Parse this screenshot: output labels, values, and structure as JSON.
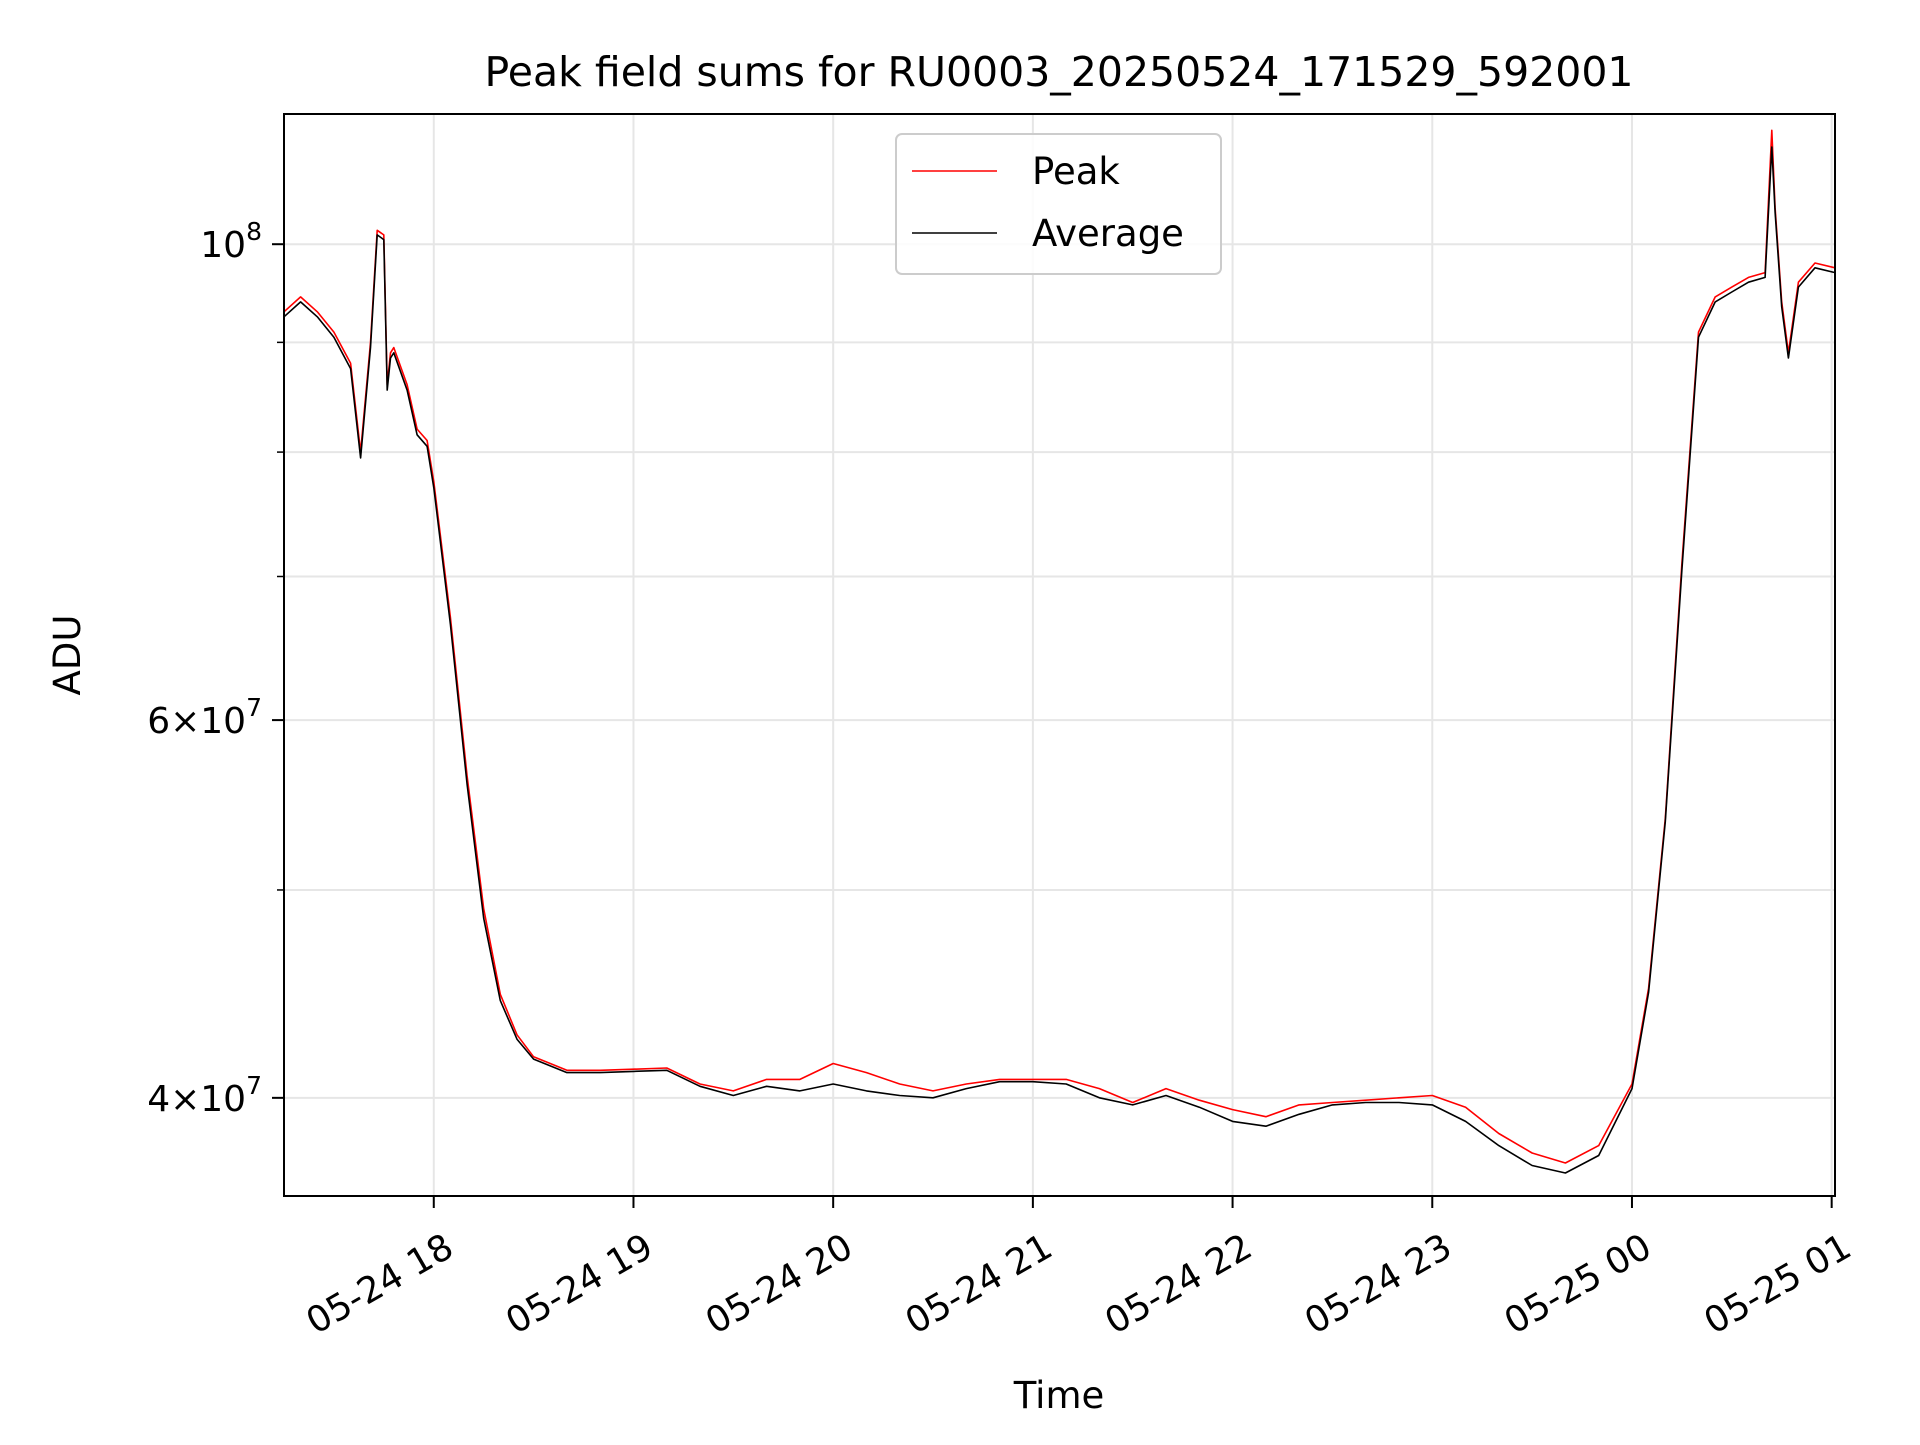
{
  "chart_data": {
    "type": "line",
    "title": "Peak field sums for RU0003_20250524_171529_592001",
    "xlabel": "Time",
    "ylabel": "ADU",
    "y_scale": "log",
    "ylim": [
      36000000,
      115000000
    ],
    "xlim": [
      "05-24 17:15",
      "05-25 01:01"
    ],
    "x_ticks": [
      "05-24 18",
      "05-24 19",
      "05-24 20",
      "05-24 21",
      "05-24 22",
      "05-24 23",
      "05-25 00",
      "05-25 01"
    ],
    "y_ticks": [
      {
        "value": 40000000,
        "base": "4",
        "exp": "7"
      },
      {
        "value": 60000000,
        "base": "6",
        "exp": "7"
      },
      {
        "value": 100000000,
        "base": "",
        "exp": "8"
      }
    ],
    "grid": true,
    "legend_position": "top-center",
    "series": [
      {
        "name": "Peak",
        "color": "#ff0000",
        "x": [
          "05-24 17:15",
          "05-24 17:20",
          "05-24 17:25",
          "05-24 17:30",
          "05-24 17:35",
          "05-24 17:38",
          "05-24 17:41",
          "05-24 17:43",
          "05-24 17:45",
          "05-24 17:46",
          "05-24 17:47",
          "05-24 17:48",
          "05-24 17:52",
          "05-24 17:55",
          "05-24 17:58",
          "05-24 18:00",
          "05-24 18:05",
          "05-24 18:10",
          "05-24 18:15",
          "05-24 18:20",
          "05-24 18:25",
          "05-24 18:30",
          "05-24 18:40",
          "05-24 18:50",
          "05-24 19:00",
          "05-24 19:10",
          "05-24 19:20",
          "05-24 19:30",
          "05-24 19:40",
          "05-24 19:50",
          "05-24 20:00",
          "05-24 20:10",
          "05-24 20:20",
          "05-24 20:30",
          "05-24 20:40",
          "05-24 20:50",
          "05-24 21:00",
          "05-24 21:10",
          "05-24 21:20",
          "05-24 21:30",
          "05-24 21:40",
          "05-24 21:50",
          "05-24 22:00",
          "05-24 22:10",
          "05-24 22:20",
          "05-24 22:30",
          "05-24 22:40",
          "05-24 22:50",
          "05-24 23:00",
          "05-24 23:10",
          "05-24 23:20",
          "05-24 23:30",
          "05-24 23:40",
          "05-24 23:50",
          "05-25 00:00",
          "05-25 00:05",
          "05-25 00:10",
          "05-25 00:15",
          "05-25 00:20",
          "05-25 00:25",
          "05-25 00:30",
          "05-25 00:35",
          "05-25 00:40",
          "05-25 00:42",
          "05-25 00:43",
          "05-25 00:45",
          "05-25 00:47",
          "05-25 00:50",
          "05-25 00:55",
          "05-25 01:01"
        ],
        "y": [
          93000000,
          94500000,
          93000000,
          91000000,
          88000000,
          80000000,
          90000000,
          101500000,
          101000000,
          86000000,
          89000000,
          89500000,
          86000000,
          82000000,
          81000000,
          77500000,
          67000000,
          56500000,
          49000000,
          44700000,
          42800000,
          41800000,
          41200000,
          41200000,
          41250000,
          41300000,
          40600000,
          40300000,
          40800000,
          40800000,
          41500000,
          41100000,
          40600000,
          40300000,
          40600000,
          40800000,
          40800000,
          40800000,
          40400000,
          39800000,
          40400000,
          39900000,
          39500000,
          39200000,
          39700000,
          39800000,
          39900000,
          40000000,
          40100000,
          39600000,
          38500000,
          37700000,
          37300000,
          38000000,
          40600000,
          45000000,
          54000000,
          71000000,
          91000000,
          94500000,
          95500000,
          96500000,
          97000000,
          113000000,
          104000000,
          94000000,
          89000000,
          96000000,
          98000000,
          97500000
        ]
      },
      {
        "name": "Average",
        "color": "#000000",
        "x": [
          "05-24 17:15",
          "05-24 17:20",
          "05-24 17:25",
          "05-24 17:30",
          "05-24 17:35",
          "05-24 17:38",
          "05-24 17:41",
          "05-24 17:43",
          "05-24 17:45",
          "05-24 17:46",
          "05-24 17:47",
          "05-24 17:48",
          "05-24 17:52",
          "05-24 17:55",
          "05-24 17:58",
          "05-24 18:00",
          "05-24 18:05",
          "05-24 18:10",
          "05-24 18:15",
          "05-24 18:20",
          "05-24 18:25",
          "05-24 18:30",
          "05-24 18:40",
          "05-24 18:50",
          "05-24 19:00",
          "05-24 19:10",
          "05-24 19:20",
          "05-24 19:30",
          "05-24 19:40",
          "05-24 19:50",
          "05-24 20:00",
          "05-24 20:10",
          "05-24 20:20",
          "05-24 20:30",
          "05-24 20:40",
          "05-24 20:50",
          "05-24 21:00",
          "05-24 21:10",
          "05-24 21:20",
          "05-24 21:30",
          "05-24 21:40",
          "05-24 21:50",
          "05-24 22:00",
          "05-24 22:10",
          "05-24 22:20",
          "05-24 22:30",
          "05-24 22:40",
          "05-24 22:50",
          "05-24 23:00",
          "05-24 23:10",
          "05-24 23:20",
          "05-24 23:30",
          "05-24 23:40",
          "05-24 23:50",
          "05-25 00:00",
          "05-25 00:05",
          "05-25 00:10",
          "05-25 00:15",
          "05-25 00:20",
          "05-25 00:25",
          "05-25 00:30",
          "05-25 00:35",
          "05-25 00:40",
          "05-25 00:42",
          "05-25 00:43",
          "05-25 00:45",
          "05-25 00:47",
          "05-25 00:50",
          "05-25 00:55",
          "05-25 01:01"
        ],
        "y": [
          92500000,
          94000000,
          92500000,
          90500000,
          87500000,
          79500000,
          89500000,
          101000000,
          100500000,
          85500000,
          88500000,
          89000000,
          85500000,
          81500000,
          80500000,
          77000000,
          66500000,
          56000000,
          48500000,
          44400000,
          42600000,
          41700000,
          41100000,
          41100000,
          41150000,
          41200000,
          40500000,
          40100000,
          40500000,
          40300000,
          40600000,
          40300000,
          40100000,
          40000000,
          40400000,
          40700000,
          40700000,
          40600000,
          40000000,
          39700000,
          40100000,
          39600000,
          39000000,
          38800000,
          39300000,
          39700000,
          39800000,
          39800000,
          39700000,
          39000000,
          38000000,
          37200000,
          36900000,
          37600000,
          40400000,
          44800000,
          53800000,
          70500000,
          90500000,
          94000000,
          95000000,
          96000000,
          96500000,
          111000000,
          103500000,
          93500000,
          88500000,
          95500000,
          97500000,
          97000000
        ]
      }
    ]
  }
}
